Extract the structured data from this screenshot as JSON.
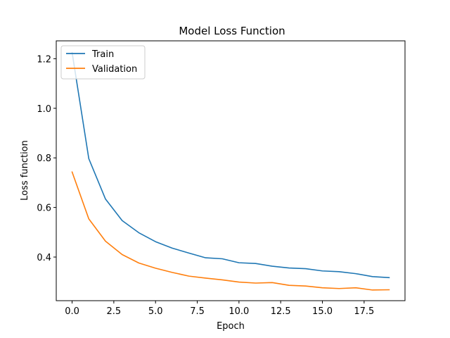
{
  "chart_data": {
    "type": "line",
    "title": "Model Loss Function",
    "xlabel": "Epoch",
    "ylabel": "Loss function",
    "xlim": [
      -0.95,
      19.95
    ],
    "ylim": [
      0.224,
      1.272
    ],
    "xticks": [
      0,
      2.5,
      5,
      7.5,
      10,
      12.5,
      15,
      17.5
    ],
    "xtick_labels": [
      "0.0",
      "2.5",
      "5.0",
      "7.5",
      "10.0",
      "12.5",
      "15.0",
      "17.5"
    ],
    "yticks": [
      0.4,
      0.6,
      0.8,
      1.0,
      1.2
    ],
    "ytick_labels": [
      "0.4",
      "0.6",
      "0.8",
      "1.0",
      "1.2"
    ],
    "grid": false,
    "legend_position": "top-left",
    "x": [
      0,
      1,
      2,
      3,
      4,
      5,
      6,
      7,
      8,
      9,
      10,
      11,
      12,
      13,
      14,
      15,
      16,
      17,
      18,
      19
    ],
    "series": [
      {
        "name": "Train",
        "color": "#1f77b4",
        "values": [
          1.225,
          0.797,
          0.634,
          0.547,
          0.498,
          0.462,
          0.436,
          0.416,
          0.397,
          0.393,
          0.377,
          0.374,
          0.363,
          0.356,
          0.353,
          0.344,
          0.341,
          0.333,
          0.321,
          0.317
        ]
      },
      {
        "name": "Validation",
        "color": "#ff7f0e",
        "values": [
          0.743,
          0.554,
          0.464,
          0.41,
          0.376,
          0.355,
          0.338,
          0.323,
          0.315,
          0.308,
          0.299,
          0.295,
          0.297,
          0.286,
          0.283,
          0.276,
          0.273,
          0.276,
          0.267,
          0.268
        ]
      }
    ]
  }
}
